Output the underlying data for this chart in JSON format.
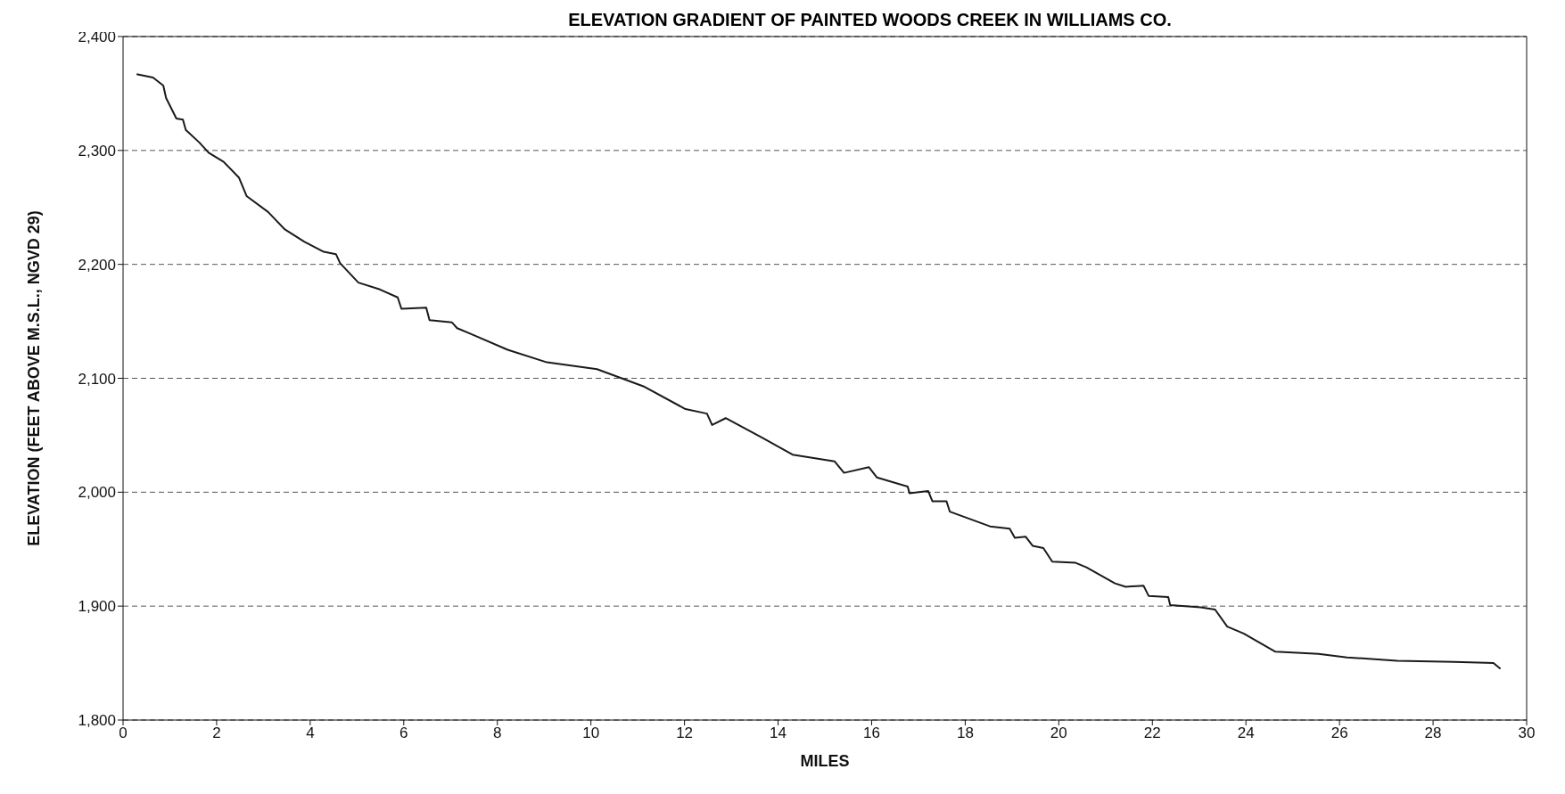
{
  "chart_data": {
    "type": "line",
    "title": "ELEVATION GRADIENT OF PAINTED WOODS CREEK IN WILLIAMS CO.",
    "xlabel": "MILES",
    "ylabel": "ELEVATION (FEET ABOVE M.S.L., NGVD 29)",
    "x": [
      0.29,
      0.64,
      0.86,
      0.92,
      1.14,
      1.28,
      1.34,
      1.63,
      1.83,
      2.15,
      2.48,
      2.64,
      3.1,
      3.45,
      3.87,
      4.29,
      4.55,
      4.64,
      5.03,
      5.49,
      5.87,
      5.95,
      6.48,
      6.55,
      7.03,
      7.14,
      7.43,
      8.22,
      9.06,
      10.13,
      11.12,
      12.02,
      12.48,
      12.59,
      12.88,
      13.65,
      14.31,
      15.21,
      15.41,
      15.94,
      16.11,
      16.77,
      16.81,
      17.21,
      17.3,
      17.6,
      17.67,
      18.53,
      18.95,
      19.06,
      19.29,
      19.44,
      19.67,
      19.86,
      20.36,
      20.59,
      21.2,
      21.43,
      21.81,
      21.92,
      22.34,
      22.38,
      23.03,
      23.34,
      23.6,
      23.95,
      24.63,
      25.55,
      26.16,
      27.23,
      28.45,
      29.29,
      29.44
    ],
    "series": [
      {
        "color": "#1a1a1a",
        "values": [
          2367,
          2364,
          2357,
          2346,
          2328,
          2327,
          2318,
          2307,
          2298,
          2290,
          2276,
          2260,
          2246,
          2231,
          2220,
          2211,
          2209,
          2201,
          2184,
          2178,
          2171,
          2161,
          2162,
          2151,
          2149,
          2144,
          2139,
          2125,
          2114,
          2108,
          2093,
          2073,
          2069,
          2059,
          2065,
          2048,
          2033,
          2027,
          2017,
          2022,
          2013,
          2005,
          1999,
          2001,
          1992,
          1992,
          1983,
          1970,
          1968,
          1960,
          1961,
          1953,
          1951,
          1939,
          1938,
          1934,
          1920,
          1917,
          1918,
          1909,
          1908,
          1901,
          1899,
          1897,
          1882,
          1876,
          1860,
          1858,
          1855,
          1852,
          1851,
          1850,
          1845
        ]
      }
    ],
    "xlim": [
      0,
      30
    ],
    "xticks": [
      0,
      2,
      4,
      6,
      8,
      10,
      12,
      14,
      16,
      18,
      20,
      22,
      24,
      26,
      28,
      30
    ],
    "ylim": [
      1800,
      2400
    ],
    "yticks": [
      {
        "value": 1800,
        "label": "1,800"
      },
      {
        "value": 1900,
        "label": "1,900"
      },
      {
        "value": 2000,
        "label": "2,000"
      },
      {
        "value": 2100,
        "label": "2,100"
      },
      {
        "value": 2200,
        "label": "2,200"
      },
      {
        "value": 2300,
        "label": "2,300"
      },
      {
        "value": 2400,
        "label": "2,400"
      }
    ],
    "grid": "y",
    "legend": false,
    "marker": "none",
    "line_style": "solid"
  }
}
